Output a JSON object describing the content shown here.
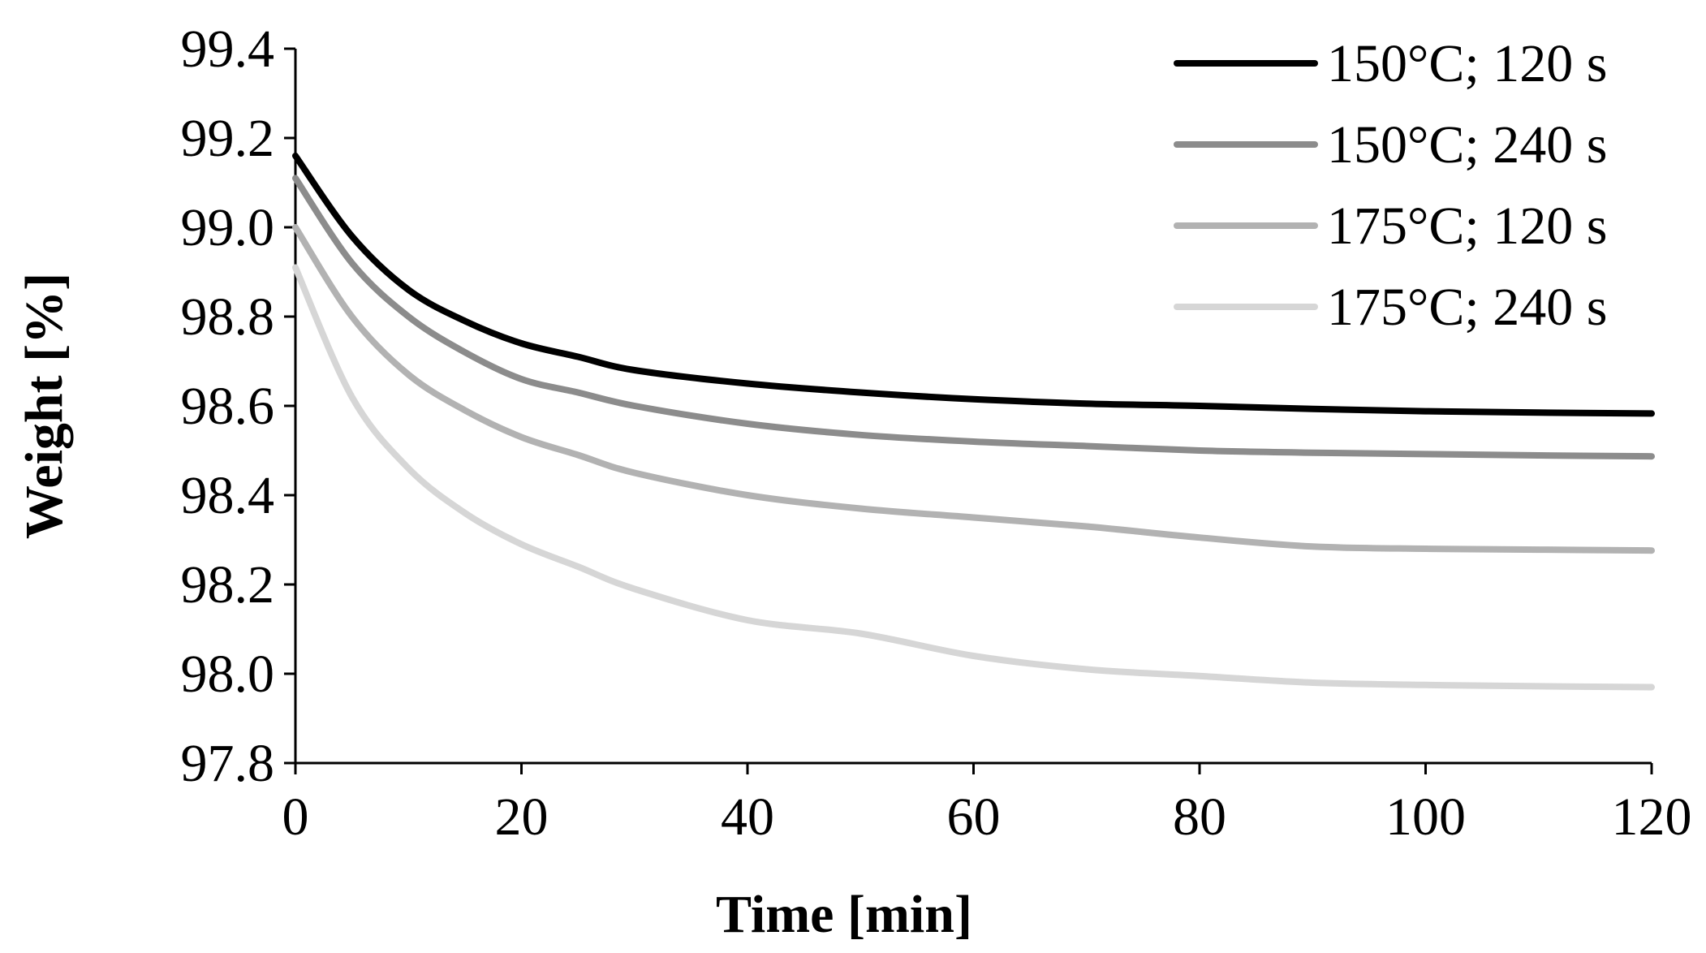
{
  "chart_data": {
    "type": "line",
    "title": "",
    "xlabel": "Time [min]",
    "ylabel": "Weight [%]",
    "xlim": [
      0,
      120
    ],
    "ylim": [
      97.8,
      99.4
    ],
    "x_ticks": [
      "0",
      "20",
      "40",
      "60",
      "80",
      "100",
      "120"
    ],
    "y_ticks": [
      "97.8",
      "98.0",
      "98.2",
      "98.4",
      "98.6",
      "98.8",
      "99.0",
      "99.2",
      "99.4"
    ],
    "grid": false,
    "legend_position": "top-right",
    "x": [
      0,
      5,
      10,
      15,
      20,
      25,
      30,
      40,
      50,
      60,
      70,
      80,
      90,
      100,
      110,
      120
    ],
    "series": [
      {
        "name": "150°C; 120 s",
        "color": "#000000",
        "values": [
          99.16,
          98.98,
          98.86,
          98.79,
          98.74,
          98.71,
          98.68,
          98.65,
          98.63,
          98.615,
          98.605,
          98.6,
          98.593,
          98.588,
          98.585,
          98.583
        ]
      },
      {
        "name": "150°C; 240 s",
        "color": "#8c8c8c",
        "values": [
          99.11,
          98.92,
          98.8,
          98.72,
          98.66,
          98.63,
          98.6,
          98.56,
          98.535,
          98.52,
          98.51,
          98.5,
          98.495,
          98.492,
          98.489,
          98.487
        ]
      },
      {
        "name": "175°C; 120 s",
        "color": "#b2b2b2",
        "values": [
          99.0,
          98.8,
          98.67,
          98.59,
          98.53,
          98.49,
          98.45,
          98.4,
          98.37,
          98.35,
          98.33,
          98.305,
          98.285,
          98.28,
          98.278,
          98.276
        ]
      },
      {
        "name": "175°C; 240 s",
        "color": "#d6d6d6",
        "values": [
          98.91,
          98.62,
          98.46,
          98.36,
          98.29,
          98.24,
          98.19,
          98.12,
          98.09,
          98.04,
          98.01,
          97.995,
          97.98,
          97.975,
          97.972,
          97.97
        ]
      }
    ]
  }
}
